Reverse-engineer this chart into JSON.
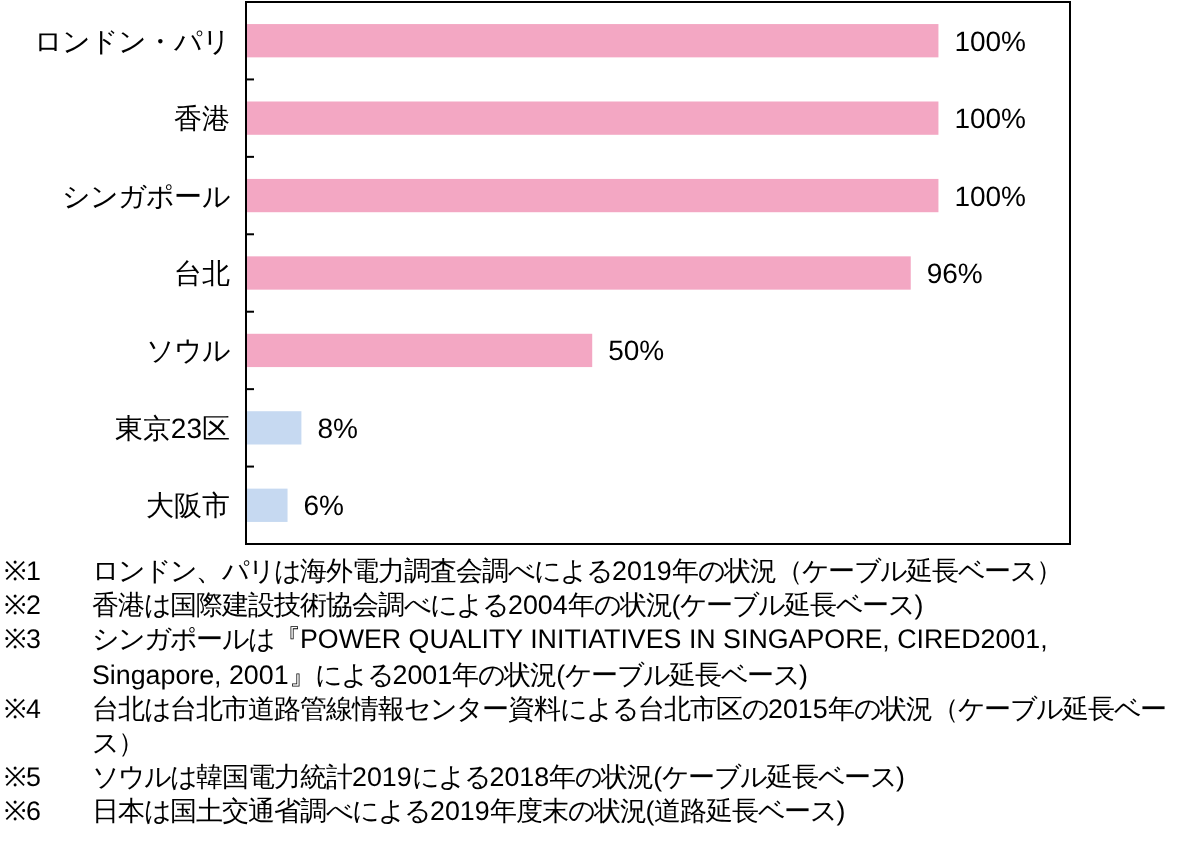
{
  "chart_data": {
    "type": "bar",
    "orientation": "horizontal",
    "categories": [
      "ロンドン・パリ",
      "香港",
      "シンガポール",
      "台北",
      "ソウル",
      "東京23区",
      "大阪市"
    ],
    "values": [
      100,
      100,
      100,
      96,
      50,
      8,
      6
    ],
    "colors": [
      "#f3a7c3",
      "#f3a7c3",
      "#f3a7c3",
      "#f3a7c3",
      "#f3a7c3",
      "#c6d9f1",
      "#c6d9f1"
    ],
    "value_labels": [
      "100%",
      "100%",
      "100%",
      "96%",
      "50%",
      "8%",
      "6%"
    ],
    "xlim": [
      0,
      119
    ],
    "tick_labels": "y",
    "annotations": [
      "※1 ロンドン、パリは海外電力調査会調べによる2019年の状況（ケーブル延長ベース）",
      "※2 香港は国際建設技術協会調べによる2004年の状況(ケーブル延長ベース)",
      "※3 シンガポールは『POWER QUALITY INITIATIVES IN SINGAPORE, CIRED2001, Singapore, 2001』による2001年の状況(ケーブル延長ベース)",
      "※4 台北は台北市道路管線情報センター資料による台北市区の2015年の状況（ケーブル延長ベース）",
      "※5 ソウルは韓国電力統計2019による2018年の状況(ケーブル延長ベース)",
      "※6 日本は国土交通省調べによる2019年度末の状況(道路延長ベース)"
    ]
  }
}
